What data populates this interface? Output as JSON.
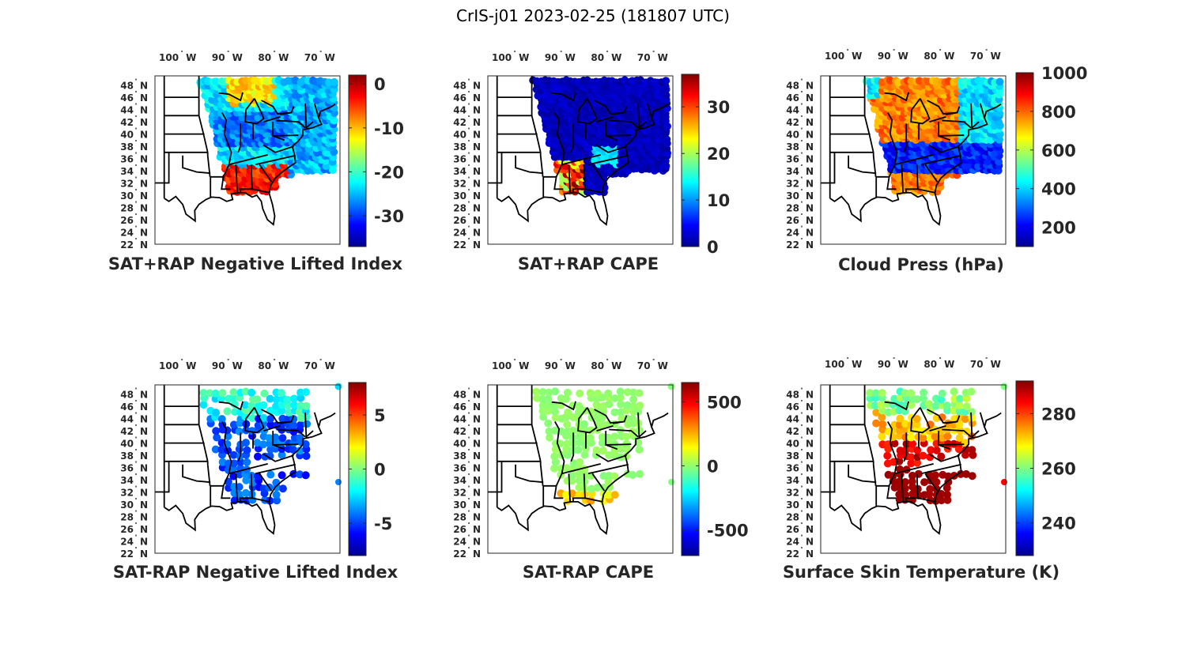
{
  "figure": {
    "title": "CrIS-j01 2023-02-25 (181807 UTC)"
  },
  "map": {
    "lon_ticks": [
      {
        "deg": "100",
        "hemi": "W"
      },
      {
        "deg": "90",
        "hemi": "W"
      },
      {
        "deg": "80",
        "hemi": "W"
      },
      {
        "deg": "70",
        "hemi": "W"
      }
    ],
    "lat_ticks": [
      {
        "deg": "48",
        "hemi": "N"
      },
      {
        "deg": "46",
        "hemi": "N"
      },
      {
        "deg": "44",
        "hemi": "N"
      },
      {
        "deg": "42",
        "hemi": "N"
      },
      {
        "deg": "40",
        "hemi": "N"
      },
      {
        "deg": "38",
        "hemi": "N"
      },
      {
        "deg": "36",
        "hemi": "N"
      },
      {
        "deg": "34",
        "hemi": "N"
      },
      {
        "deg": "32",
        "hemi": "N"
      },
      {
        "deg": "30",
        "hemi": "N"
      },
      {
        "deg": "28",
        "hemi": "N"
      },
      {
        "deg": "26",
        "hemi": "N"
      },
      {
        "deg": "24",
        "hemi": "N"
      },
      {
        "deg": "22",
        "hemi": "N"
      }
    ],
    "lon_range": [
      -106,
      -66
    ],
    "lat_range": [
      22,
      49.5
    ]
  },
  "colors": {
    "jet": [
      "#00008f",
      "#0000ff",
      "#0080ff",
      "#00ffff",
      "#80ff80",
      "#ffff00",
      "#ff8000",
      "#ff0000",
      "#800000"
    ],
    "outline": "#000000",
    "text": "#262626"
  },
  "panels": [
    {
      "title": "SAT+RAP Negative Lifted Index",
      "colorbar": {
        "min": -37,
        "max": 2,
        "ticks": [
          "0",
          "-10",
          "-20",
          "-30"
        ],
        "tick_values": [
          0,
          -10,
          -20,
          -30
        ]
      },
      "swath": "full"
    },
    {
      "title": "SAT+RAP CAPE",
      "colorbar": {
        "min": 0,
        "max": 37,
        "ticks": [
          "30",
          "20",
          "10",
          "0"
        ],
        "tick_values": [
          30,
          20,
          10,
          0
        ]
      },
      "swath": "full"
    },
    {
      "title": "Cloud Press (hPa)",
      "colorbar": {
        "min": 100,
        "max": 1000,
        "ticks": [
          "1000",
          "800",
          "600",
          "400",
          "200"
        ],
        "tick_values": [
          1000,
          800,
          600,
          400,
          200
        ]
      },
      "swath": "full"
    },
    {
      "title": "SAT-RAP Negative Lifted Index",
      "colorbar": {
        "min": -8,
        "max": 8,
        "ticks": [
          "5",
          "0",
          "-5"
        ],
        "tick_values": [
          5,
          0,
          -5
        ]
      },
      "swath": "sparse"
    },
    {
      "title": "SAT-RAP CAPE",
      "colorbar": {
        "min": -700,
        "max": 650,
        "ticks": [
          "500",
          "0",
          "-500"
        ],
        "tick_values": [
          500,
          0,
          -500
        ]
      },
      "swath": "sparse"
    },
    {
      "title": "Surface Skin Temperature (K)",
      "colorbar": {
        "min": 228,
        "max": 292,
        "ticks": [
          "280",
          "260",
          "240"
        ],
        "tick_values": [
          280,
          260,
          240
        ]
      },
      "swath": "sparse"
    }
  ]
}
